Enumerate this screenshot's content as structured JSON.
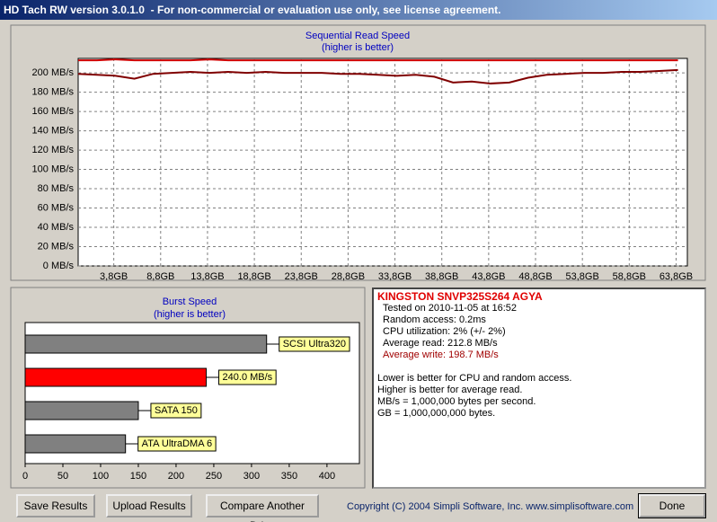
{
  "window": {
    "title": "HD Tach RW version 3.0.1.0  - For non-commercial or evaluation use only, see license agreement."
  },
  "chart_data": [
    {
      "type": "line",
      "title": "Sequential Read Speed",
      "subtitle": "(higher is better)",
      "x": [
        0,
        2,
        4,
        6,
        8,
        10,
        12,
        14,
        16,
        18,
        20,
        22,
        24,
        26,
        28,
        30,
        32,
        34,
        36,
        38,
        40,
        42,
        44,
        46,
        48,
        50,
        52,
        54,
        56,
        58,
        60,
        62,
        64
      ],
      "series": [
        {
          "color": "#d00000",
          "values": [
            213,
            213,
            214,
            213,
            213,
            213,
            213,
            214,
            213,
            213,
            213,
            213,
            213,
            213,
            213,
            213,
            213,
            213,
            213,
            213,
            213,
            213,
            213,
            213,
            213,
            213,
            213,
            213,
            213,
            213,
            213,
            213,
            213
          ]
        },
        {
          "color": "#800000",
          "values": [
            199,
            198,
            197,
            194,
            199,
            200,
            201,
            200,
            201,
            200,
            201,
            200,
            200,
            200,
            199,
            199,
            198,
            197,
            198,
            196,
            190,
            191,
            189,
            190,
            195,
            198,
            199,
            200,
            200,
            201,
            201,
            202,
            203
          ]
        }
      ],
      "xlim": [
        0,
        65
      ],
      "ylim": [
        0,
        215
      ],
      "xticks": [
        {
          "value": 3.8,
          "label": "3,8GB"
        },
        {
          "value": 8.8,
          "label": "8,8GB"
        },
        {
          "value": 13.8,
          "label": "13,8GB"
        },
        {
          "value": 18.8,
          "label": "18,8GB"
        },
        {
          "value": 23.8,
          "label": "23,8GB"
        },
        {
          "value": 28.8,
          "label": "28,8GB"
        },
        {
          "value": 33.8,
          "label": "33,8GB"
        },
        {
          "value": 38.8,
          "label": "38,8GB"
        },
        {
          "value": 43.8,
          "label": "43,8GB"
        },
        {
          "value": 48.8,
          "label": "48,8GB"
        },
        {
          "value": 53.8,
          "label": "53,8GB"
        },
        {
          "value": 58.8,
          "label": "58,8GB"
        },
        {
          "value": 63.8,
          "label": "63,8GB"
        }
      ],
      "yticks": [
        {
          "value": 0,
          "label": "0 MB/s"
        },
        {
          "value": 20,
          "label": "20 MB/s"
        },
        {
          "value": 40,
          "label": "40 MB/s"
        },
        {
          "value": 60,
          "label": "60 MB/s"
        },
        {
          "value": 80,
          "label": "80 MB/s"
        },
        {
          "value": 100,
          "label": "100 MB/s"
        },
        {
          "value": 120,
          "label": "120 MB/s"
        },
        {
          "value": 140,
          "label": "140 MB/s"
        },
        {
          "value": 160,
          "label": "160 MB/s"
        },
        {
          "value": 180,
          "label": "180 MB/s"
        },
        {
          "value": 200,
          "label": "200 MB/s"
        }
      ],
      "grid": true
    },
    {
      "type": "hbar",
      "title": "Burst Speed",
      "subtitle": "(higher is better)",
      "categories": [
        "SCSI Ultra320",
        null,
        "SATA 150",
        "ATA UltraDMA 6"
      ],
      "values": [
        320,
        240,
        150,
        133
      ],
      "value_labels": [
        null,
        "240.0 MB/s",
        null,
        null
      ],
      "colors": [
        "#808080",
        "#ff0000",
        "#808080",
        "#808080"
      ],
      "xlim": [
        0,
        443
      ],
      "xticks": [
        0,
        50,
        100,
        150,
        200,
        250,
        300,
        350,
        400
      ]
    }
  ],
  "info": {
    "drive": "KINGSTON SNVP325S264 AGYA",
    "lines": [
      "Tested on 2010-11-05 at 16:52",
      "Random access: 0.2ms",
      "CPU utilization: 2% (+/- 2%)",
      "Average read: 212.8 MB/s",
      "Average write: 198.7 MB/s"
    ],
    "notes": [
      "Lower is better for CPU and random access.",
      "Higher is better for average read.",
      "MB/s = 1,000,000 bytes per second.",
      "GB = 1,000,000,000 bytes."
    ]
  },
  "buttons": [
    "Save Results",
    "Upload Results",
    "Compare Another Drive",
    "Done"
  ],
  "copyright": "Copyright (C) 2004 Simpli Software, Inc. www.simplisoftware.com"
}
